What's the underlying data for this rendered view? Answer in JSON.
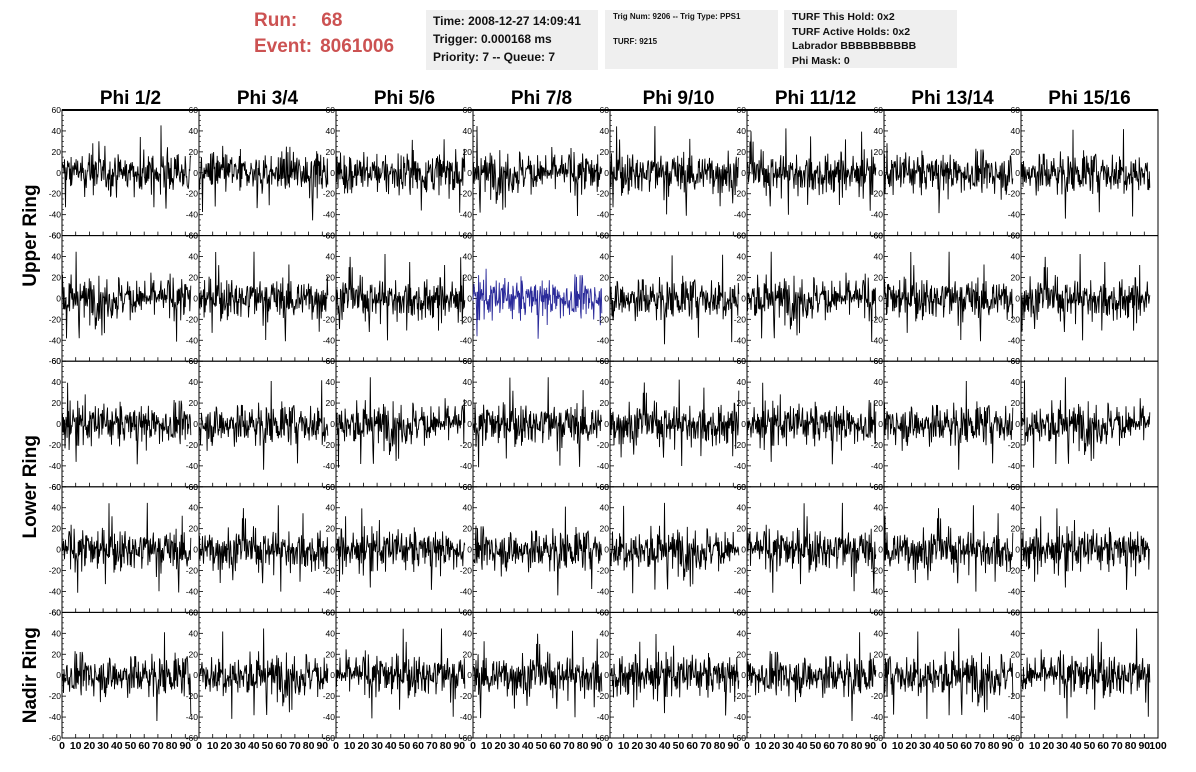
{
  "header": {
    "run_label": "Run:",
    "run_value": "68",
    "event_label": "Event:",
    "event_value": "8061006"
  },
  "info_box_1": {
    "time": "Time: 2008-12-27 14:09:41",
    "trigger": "Trigger: 0.000168 ms",
    "priority": "Priority: 7 -- Queue: 7"
  },
  "info_box_2": {
    "trig": "Trig Num: 9206 -- Trig Type: PPS1",
    "turf": "TURF: 9215"
  },
  "info_box_3": {
    "this_hold": "TURF This Hold: 0x2",
    "active_holds": "TURF Active Holds: 0x2",
    "labrador": "Labrador BBBBBBBBBB",
    "phi_mask": "Phi Mask: 0"
  },
  "colors": {
    "trace": "#000000",
    "highlight_trace": "#2a2a9a",
    "title_red": "#cc5252",
    "box_bg": "#efefef"
  },
  "chart_data": {
    "type": "line",
    "columns": [
      "Phi 1/2",
      "Phi 3/4",
      "Phi 5/6",
      "Phi 7/8",
      "Phi 9/10",
      "Phi 11/12",
      "Phi 13/14",
      "Phi 15/16"
    ],
    "rows": [
      "Upper Ring",
      "Upper Ring",
      "Lower Ring",
      "Lower Ring",
      "Nadir Ring"
    ],
    "row_titles": [
      {
        "label": "Upper Ring",
        "rows": [
          0,
          1
        ]
      },
      {
        "label": "Lower Ring",
        "rows": [
          2,
          3
        ]
      },
      {
        "label": "Nadir Ring",
        "rows": [
          4
        ]
      }
    ],
    "xlim": [
      0,
      100
    ],
    "ylim": [
      -60,
      60
    ],
    "yticks": [
      -60,
      -40,
      -20,
      0,
      20,
      40,
      60
    ],
    "xticks": [
      0,
      10,
      20,
      30,
      40,
      50,
      60,
      70,
      80,
      90,
      100
    ],
    "xtick_labels": [
      "0",
      "10",
      "20",
      "30",
      "40",
      "50",
      "60",
      "70",
      "80",
      "90",
      "100"
    ],
    "highlighted_panel": {
      "row": 1,
      "col": 3
    },
    "samples_per_trace": 256,
    "trace_x_range": [
      0,
      94
    ],
    "typical_amplitude": 15,
    "peak_amplitude": 35
  }
}
